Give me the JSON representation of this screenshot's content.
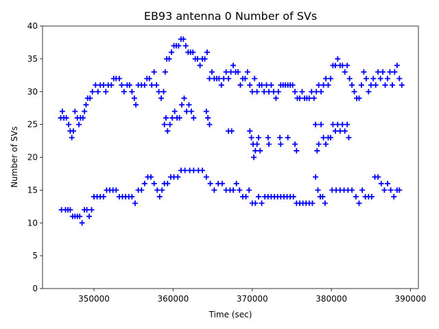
{
  "chart_data": {
    "type": "scatter",
    "title": "EB93 antenna 0 Number of SVs",
    "xlabel": "Time (sec)",
    "ylabel": "Number of SVs",
    "xlim": [
      343500,
      391000
    ],
    "ylim": [
      0,
      40
    ],
    "xticks": [
      350000,
      360000,
      370000,
      380000,
      390000
    ],
    "xtick_labels": [
      "350000",
      "360000",
      "370000",
      "380000",
      "390000"
    ],
    "yticks": [
      0,
      5,
      10,
      15,
      20,
      25,
      30,
      35,
      40
    ],
    "ytick_labels": [
      "0",
      "5",
      "10",
      "15",
      "20",
      "25",
      "30",
      "35",
      "40"
    ],
    "grid": false,
    "marker": "plus",
    "marker_color": "#0000ff",
    "series": [
      {
        "points": [
          [
            345800,
            26
          ],
          [
            346000,
            27
          ],
          [
            346200,
            26
          ],
          [
            346500,
            26
          ],
          [
            346800,
            25
          ],
          [
            347000,
            24
          ],
          [
            347200,
            23
          ],
          [
            347400,
            24
          ],
          [
            347600,
            27
          ],
          [
            347900,
            26
          ],
          [
            348100,
            25
          ],
          [
            348300,
            26
          ],
          [
            348600,
            26
          ],
          [
            348800,
            27
          ],
          [
            349000,
            28
          ],
          [
            349200,
            29
          ],
          [
            349500,
            29
          ],
          [
            349800,
            30
          ],
          [
            350200,
            31
          ],
          [
            350500,
            30
          ],
          [
            350800,
            31
          ],
          [
            351200,
            31
          ],
          [
            351500,
            30
          ],
          [
            351800,
            31
          ],
          [
            352200,
            31
          ],
          [
            352500,
            32
          ],
          [
            352800,
            32
          ],
          [
            353200,
            32
          ],
          [
            353500,
            31
          ],
          [
            353800,
            30
          ],
          [
            354200,
            31
          ],
          [
            354500,
            31
          ],
          [
            354800,
            30
          ],
          [
            355100,
            29
          ],
          [
            355300,
            28
          ],
          [
            355600,
            31
          ],
          [
            356000,
            31
          ],
          [
            356400,
            31
          ],
          [
            356700,
            32
          ],
          [
            357000,
            32
          ],
          [
            357300,
            31
          ],
          [
            357600,
            33
          ],
          [
            357900,
            31
          ],
          [
            358200,
            30
          ],
          [
            358500,
            29
          ],
          [
            358800,
            30
          ],
          [
            359000,
            33
          ],
          [
            359200,
            35
          ],
          [
            359500,
            35
          ],
          [
            359800,
            36
          ],
          [
            360100,
            37
          ],
          [
            360400,
            37
          ],
          [
            360700,
            37
          ],
          [
            361000,
            38
          ],
          [
            361300,
            38
          ],
          [
            361600,
            37
          ],
          [
            361900,
            36
          ],
          [
            362200,
            36
          ],
          [
            362500,
            36
          ],
          [
            362800,
            35
          ],
          [
            363100,
            35
          ],
          [
            363400,
            34
          ],
          [
            363700,
            35
          ],
          [
            364000,
            35
          ],
          [
            364300,
            36
          ],
          [
            364600,
            32
          ],
          [
            364900,
            33
          ],
          [
            365200,
            32
          ],
          [
            365500,
            32
          ],
          [
            365800,
            32
          ],
          [
            366100,
            31
          ],
          [
            366400,
            32
          ],
          [
            366700,
            33
          ],
          [
            367000,
            32
          ],
          [
            367300,
            33
          ],
          [
            367600,
            34
          ],
          [
            367900,
            33
          ],
          [
            368200,
            33
          ],
          [
            368500,
            31
          ],
          [
            368800,
            32
          ],
          [
            369100,
            32
          ],
          [
            369400,
            33
          ],
          [
            369700,
            31
          ],
          [
            370000,
            30
          ],
          [
            370300,
            32
          ],
          [
            370600,
            30
          ],
          [
            370900,
            31
          ],
          [
            371200,
            31
          ],
          [
            371500,
            30
          ],
          [
            371800,
            31
          ],
          [
            372100,
            30
          ],
          [
            372400,
            31
          ],
          [
            372700,
            30
          ],
          [
            373000,
            29
          ],
          [
            373300,
            30
          ],
          [
            373600,
            31
          ],
          [
            373900,
            31
          ],
          [
            374200,
            31
          ],
          [
            374500,
            31
          ],
          [
            374800,
            31
          ],
          [
            375100,
            31
          ],
          [
            375400,
            30
          ],
          [
            375700,
            29
          ],
          [
            376000,
            29
          ],
          [
            376300,
            30
          ],
          [
            376600,
            29
          ],
          [
            376900,
            29
          ],
          [
            377200,
            29
          ],
          [
            377500,
            30
          ],
          [
            377800,
            29
          ],
          [
            378100,
            30
          ],
          [
            378400,
            31
          ],
          [
            378700,
            30
          ],
          [
            379000,
            31
          ],
          [
            379300,
            32
          ],
          [
            379600,
            31
          ],
          [
            379900,
            32
          ],
          [
            380200,
            34
          ],
          [
            380500,
            34
          ],
          [
            380800,
            35
          ],
          [
            381100,
            34
          ],
          [
            381400,
            34
          ],
          [
            381700,
            33
          ],
          [
            382000,
            34
          ],
          [
            382300,
            32
          ],
          [
            382600,
            31
          ],
          [
            382900,
            30
          ],
          [
            383200,
            29
          ],
          [
            383500,
            29
          ],
          [
            383800,
            31
          ],
          [
            384100,
            33
          ],
          [
            384400,
            32
          ],
          [
            384700,
            30
          ],
          [
            385000,
            31
          ],
          [
            385300,
            32
          ],
          [
            385600,
            31
          ],
          [
            385900,
            33
          ],
          [
            386200,
            32
          ],
          [
            386500,
            33
          ],
          [
            386800,
            31
          ],
          [
            387100,
            32
          ],
          [
            387400,
            33
          ],
          [
            387700,
            31
          ],
          [
            388000,
            33
          ],
          [
            388300,
            34
          ],
          [
            388600,
            32
          ],
          [
            388900,
            31
          ],
          [
            358900,
            25
          ],
          [
            359100,
            26
          ],
          [
            359300,
            24
          ],
          [
            359600,
            25
          ],
          [
            359900,
            26
          ],
          [
            360200,
            27
          ],
          [
            360500,
            26
          ],
          [
            360800,
            26
          ],
          [
            361100,
            28
          ],
          [
            361400,
            29
          ],
          [
            361700,
            27
          ],
          [
            362000,
            28
          ],
          [
            362300,
            27
          ],
          [
            362600,
            26
          ],
          [
            364200,
            27
          ],
          [
            364400,
            26
          ],
          [
            364600,
            25
          ],
          [
            367000,
            24
          ],
          [
            367400,
            24
          ],
          [
            369700,
            24
          ],
          [
            369900,
            23
          ],
          [
            370100,
            22
          ],
          [
            370200,
            20
          ],
          [
            370400,
            21
          ],
          [
            370600,
            22
          ],
          [
            370800,
            23
          ],
          [
            371000,
            21
          ],
          [
            372000,
            23
          ],
          [
            372100,
            22
          ],
          [
            373500,
            23
          ],
          [
            373600,
            22
          ],
          [
            374500,
            23
          ],
          [
            375400,
            22
          ],
          [
            375600,
            21
          ],
          [
            378000,
            25
          ],
          [
            378200,
            21
          ],
          [
            378400,
            22
          ],
          [
            378700,
            25
          ],
          [
            379000,
            23
          ],
          [
            379300,
            22
          ],
          [
            379600,
            23
          ],
          [
            379900,
            23
          ],
          [
            380200,
            25
          ],
          [
            380500,
            24
          ],
          [
            380800,
            25
          ],
          [
            381100,
            24
          ],
          [
            381400,
            25
          ],
          [
            381700,
            24
          ],
          [
            382000,
            25
          ],
          [
            382200,
            23
          ],
          [
            345900,
            12
          ],
          [
            346400,
            12
          ],
          [
            346700,
            12
          ],
          [
            347000,
            12
          ],
          [
            347300,
            11
          ],
          [
            347600,
            11
          ],
          [
            347900,
            11
          ],
          [
            348200,
            11
          ],
          [
            348500,
            10
          ],
          [
            348800,
            12
          ],
          [
            349100,
            12
          ],
          [
            349400,
            11
          ],
          [
            349700,
            12
          ],
          [
            350000,
            14
          ],
          [
            350400,
            14
          ],
          [
            350800,
            14
          ],
          [
            351200,
            14
          ],
          [
            351600,
            15
          ],
          [
            352000,
            15
          ],
          [
            352400,
            15
          ],
          [
            352800,
            15
          ],
          [
            353200,
            14
          ],
          [
            353600,
            14
          ],
          [
            354000,
            14
          ],
          [
            354400,
            14
          ],
          [
            354800,
            14
          ],
          [
            355200,
            13
          ],
          [
            355600,
            15
          ],
          [
            356000,
            15
          ],
          [
            356400,
            16
          ],
          [
            356800,
            17
          ],
          [
            357200,
            17
          ],
          [
            357600,
            16
          ],
          [
            358000,
            15
          ],
          [
            358300,
            14
          ],
          [
            358600,
            15
          ],
          [
            358900,
            16
          ],
          [
            359300,
            16
          ],
          [
            359700,
            17
          ],
          [
            360100,
            17
          ],
          [
            360600,
            17
          ],
          [
            361000,
            18
          ],
          [
            361500,
            18
          ],
          [
            362100,
            18
          ],
          [
            362600,
            18
          ],
          [
            363200,
            18
          ],
          [
            363700,
            18
          ],
          [
            364200,
            17
          ],
          [
            364700,
            16
          ],
          [
            365200,
            15
          ],
          [
            365700,
            16
          ],
          [
            366200,
            16
          ],
          [
            366700,
            15
          ],
          [
            367200,
            15
          ],
          [
            367600,
            15
          ],
          [
            368000,
            16
          ],
          [
            368400,
            15
          ],
          [
            368800,
            14
          ],
          [
            369200,
            14
          ],
          [
            369600,
            15
          ],
          [
            370000,
            13
          ],
          [
            370400,
            13
          ],
          [
            370800,
            14
          ],
          [
            371200,
            13
          ],
          [
            371600,
            14
          ],
          [
            372000,
            14
          ],
          [
            372400,
            14
          ],
          [
            372800,
            14
          ],
          [
            373200,
            14
          ],
          [
            373600,
            14
          ],
          [
            374000,
            14
          ],
          [
            374400,
            14
          ],
          [
            374800,
            14
          ],
          [
            375200,
            14
          ],
          [
            375600,
            13
          ],
          [
            376000,
            13
          ],
          [
            376400,
            13
          ],
          [
            376800,
            13
          ],
          [
            377200,
            13
          ],
          [
            377600,
            13
          ],
          [
            378000,
            17
          ],
          [
            378300,
            15
          ],
          [
            378600,
            14
          ],
          [
            378900,
            14
          ],
          [
            379200,
            13
          ],
          [
            380100,
            15
          ],
          [
            380600,
            15
          ],
          [
            381100,
            15
          ],
          [
            381600,
            15
          ],
          [
            382100,
            15
          ],
          [
            382600,
            15
          ],
          [
            383100,
            14
          ],
          [
            383500,
            13
          ],
          [
            383900,
            15
          ],
          [
            384300,
            14
          ],
          [
            384700,
            14
          ],
          [
            385100,
            14
          ],
          [
            385500,
            17
          ],
          [
            385900,
            17
          ],
          [
            386300,
            16
          ],
          [
            386700,
            15
          ],
          [
            387100,
            16
          ],
          [
            387500,
            15
          ],
          [
            387900,
            14
          ],
          [
            388300,
            15
          ],
          [
            388600,
            15
          ]
        ]
      }
    ]
  }
}
